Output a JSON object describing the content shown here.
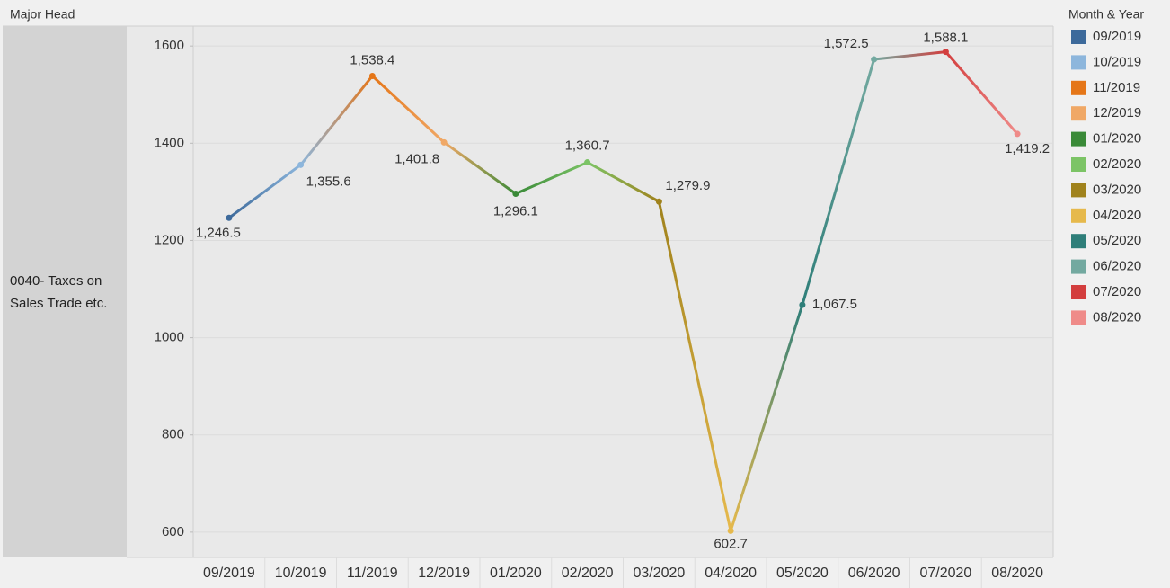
{
  "chart_data": {
    "type": "line",
    "header": "Major Head",
    "row_label": "0040- Taxes on Sales Trade etc.",
    "legend_title": "Month & Year",
    "categories": [
      "09/2019",
      "10/2019",
      "11/2019",
      "12/2019",
      "01/2020",
      "02/2020",
      "03/2020",
      "04/2020",
      "05/2020",
      "06/2020",
      "07/2020",
      "08/2020"
    ],
    "values": [
      1246.5,
      1355.6,
      1538.4,
      1401.8,
      1296.1,
      1360.7,
      1279.9,
      602.7,
      1067.5,
      1572.5,
      1588.1,
      1419.2
    ],
    "value_labels": [
      "1,246.5",
      "1,355.6",
      "1,538.4",
      "1,401.8",
      "1,296.1",
      "1,360.7",
      "1,279.9",
      "602.7",
      "1,067.5",
      "1,572.5",
      "1,588.1",
      "1,419.2"
    ],
    "colors": [
      "#3d6a9b",
      "#8db6dc",
      "#e57618",
      "#f0a866",
      "#3a8a38",
      "#7cc466",
      "#a0821c",
      "#e6b94c",
      "#2e7e79",
      "#73a9a0",
      "#d33e3e",
      "#ef8b89"
    ],
    "ylim": [
      548,
      1641
    ],
    "yticks": [
      600,
      800,
      1000,
      1200,
      1400,
      1600
    ],
    "grid": true
  }
}
